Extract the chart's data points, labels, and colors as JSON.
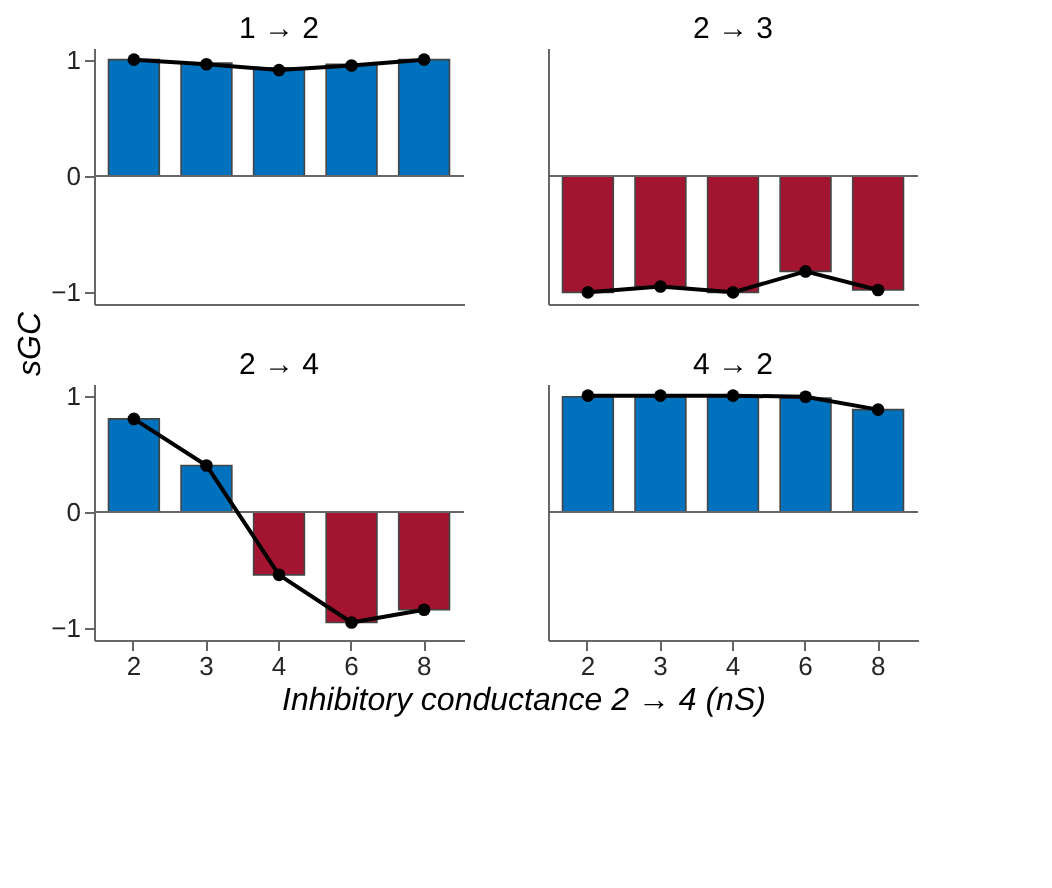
{
  "chart_data": [
    {
      "type": "bar",
      "title": "1 → 2",
      "ylabel": "sGC",
      "categories": [
        "2",
        "3",
        "4",
        "6",
        "8"
      ],
      "ylim": [
        -1.1,
        1.1
      ],
      "yticks": [
        -1,
        0,
        1
      ],
      "grid": false,
      "tick_labels": "y",
      "ref_lines": [
        {
          "axis": "y",
          "value": 0
        }
      ],
      "series": [
        {
          "values": [
            1,
            0.97,
            0.93,
            0.96,
            1
          ],
          "colors": [
            "#0072bd",
            "#0072bd",
            "#0072bd",
            "#0072bd",
            "#0072bd"
          ]
        },
        {
          "type": "line",
          "color": "#000000",
          "marker": "circle",
          "line_style": "solid",
          "values": [
            1,
            0.96,
            0.91,
            0.95,
            1
          ]
        }
      ]
    },
    {
      "type": "bar",
      "title": "2 → 3",
      "categories": [
        "2",
        "3",
        "4",
        "6",
        "8"
      ],
      "ylim": [
        -1.1,
        1.1
      ],
      "yticks": [
        -1,
        0,
        1
      ],
      "grid": false,
      "tick_labels": false,
      "ref_lines": [
        {
          "axis": "y",
          "value": 0
        }
      ],
      "series": [
        {
          "values": [
            -1,
            -0.95,
            -1,
            -0.82,
            -0.98
          ],
          "colors": [
            "#a2142f",
            "#a2142f",
            "#a2142f",
            "#a2142f",
            "#a2142f"
          ]
        },
        {
          "type": "line",
          "color": "#000000",
          "marker": "circle",
          "line_style": "solid",
          "values": [
            -1,
            -0.95,
            -1,
            -0.82,
            -0.98
          ]
        }
      ]
    },
    {
      "type": "bar",
      "title": "2 → 4",
      "xlabel": "Inhibitory conductance 2 → 4 (nS)",
      "categories": [
        "2",
        "3",
        "4",
        "6",
        "8"
      ],
      "ylim": [
        -1.1,
        1.1
      ],
      "yticks": [
        -1,
        0,
        1
      ],
      "grid": false,
      "ref_lines": [
        {
          "axis": "y",
          "value": 0
        }
      ],
      "series": [
        {
          "values": [
            0.8,
            0.4,
            -0.54,
            -0.95,
            -0.84
          ],
          "colors": [
            "#0072bd",
            "#0072bd",
            "#a2142f",
            "#a2142f",
            "#a2142f"
          ]
        },
        {
          "type": "line",
          "color": "#000000",
          "marker": "circle",
          "line_style": "solid",
          "values": [
            0.8,
            0.4,
            -0.54,
            -0.95,
            -0.84
          ]
        }
      ]
    },
    {
      "type": "bar",
      "title": "4 → 2",
      "categories": [
        "2",
        "3",
        "4",
        "6",
        "8"
      ],
      "ylim": [
        -1.1,
        1.1
      ],
      "yticks": [
        -1,
        0,
        1
      ],
      "grid": false,
      "tick_labels": "x",
      "ref_lines": [
        {
          "axis": "y",
          "value": 0
        }
      ],
      "series": [
        {
          "values": [
            0.99,
            0.99,
            0.99,
            0.98,
            0.88
          ],
          "colors": [
            "#0072bd",
            "#0072bd",
            "#0072bd",
            "#0072bd",
            "#0072bd"
          ]
        },
        {
          "type": "line",
          "color": "#000000",
          "marker": "circle",
          "line_style": "solid",
          "values": [
            1,
            1,
            1,
            0.99,
            0.88
          ]
        }
      ]
    }
  ]
}
